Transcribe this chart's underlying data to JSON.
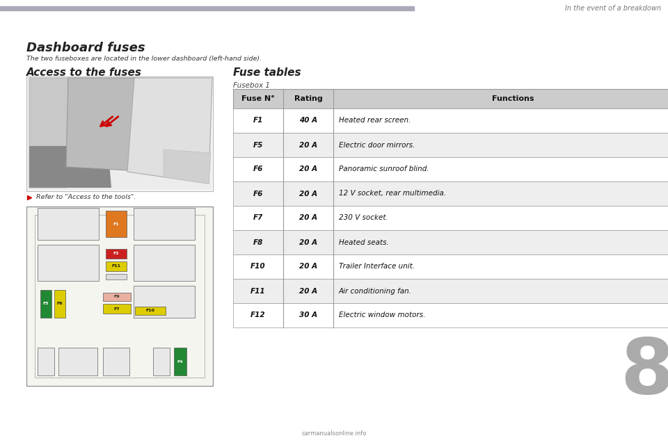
{
  "page_bg": "#ffffff",
  "header_line_color": "#aaaabb",
  "header_text": "In the event of a breakdown",
  "header_text_color": "#777777",
  "title": "Dashboard fuses",
  "subtitle": "The two fuseboxes are located in the lower dashboard (left-hand side).",
  "title_color": "#222222",
  "subtitle_color": "#333333",
  "section1_title": "Access to the fuses",
  "section2_title": "Fuse tables",
  "fusebox_label": "Fusebox 1",
  "refer_text": "Refer to \"Access to the tools\".",
  "refer_bullet_color": "#cc0000",
  "table_header": [
    "Fuse N°",
    "Rating",
    "Functions"
  ],
  "table_rows": [
    [
      "F1",
      "40 A",
      "Heated rear screen."
    ],
    [
      "F5",
      "20 A",
      "Electric door mirrors."
    ],
    [
      "F6",
      "20 A",
      "Panoramic sunroof blind."
    ],
    [
      "F6",
      "20 A",
      "12 V socket, rear multimedia."
    ],
    [
      "F7",
      "20 A",
      "230 V socket."
    ],
    [
      "F8",
      "20 A",
      "Heated seats."
    ],
    [
      "F10",
      "20 A",
      "Trailer Interface unit."
    ],
    [
      "F11",
      "20 A",
      "Air conditioning fan."
    ],
    [
      "F12",
      "30 A",
      "Electric window motors."
    ]
  ],
  "table_header_bg": "#cccccc",
  "table_row_bg_odd": "#ffffff",
  "table_row_bg_even": "#eeeeee",
  "table_border_color": "#999999",
  "table_text_color": "#111111",
  "section_title_color": "#222222",
  "chapter_number": "8",
  "chapter_number_color": "#aaaaaa",
  "fuse_orange": "#e07820",
  "fuse_red": "#cc2020",
  "fuse_yellow": "#ddcc00",
  "fuse_green": "#228833",
  "fuse_pink": "#e8b0a0",
  "fuse_white": "#dddddd",
  "fusebox_bg": "#f5f5f0",
  "fusebox_border": "#999999",
  "fuse_slot_bg": "#e8e8e8",
  "fuse_slot_border": "#aaaaaa"
}
